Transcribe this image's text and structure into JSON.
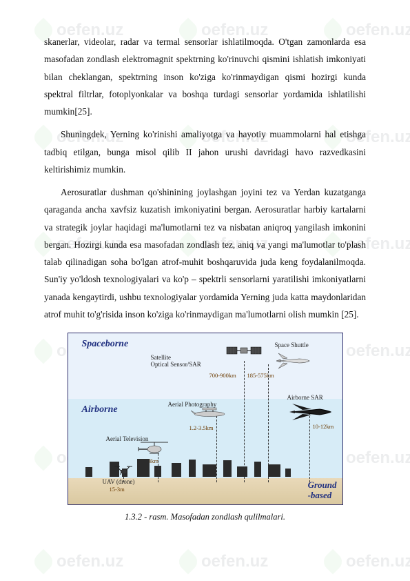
{
  "watermark_text": "oefen.uz",
  "paragraphs": {
    "p1": "skanerlar,  videolar, radar  va  termal  sensorlar  ishlatilmoqda.  O'tgan zamonlarda  esa  masofadan  zondlash elektromagnit  spektrning  ko'rinuvchi qismini  ishlatish  imkoniyati  bilan  cheklangan, spektrning  inson  ko'ziga ko'rinmaydigan  qismi  hozirgi  kunda  spektral  filtrlar, fotoplyonkalar  va  boshqa turdagi  sensorlar  yordamida  ishlatilishi  mumkin[25].",
    "p2": "Shuningdek,  Yerning  ko'rinishi  amaliyotga  va  hayotiy  muammolarni  hal etishga  tadbiq  etilgan,  bunga misol  qilib  II  jahon  urushi  davridagi  havo razvedkasini  keltirishimiz  mumkin.",
    "p3": "Aerosuratlar  dushman  qo'shinining  joylashgan  joyini  tez  va  Yerdan kuzatganga qaraganda ancha xavfsiz kuzatish imkoniyatini bergan.   Aerosuratlar harbiy  kartalarni va  strategik joylar  haqidagi  ma'lumotlarni  tez  va  nisbatan aniqroq  yangilash  imkonini  bergan. Hozirgi  kunda  esa  masofadan  zondlash tez,  aniq  va  yangi  ma'lumotlar  to'plash  talab qilinadigan soha bo'lgan  atrof-muhit boshqaruvida juda keng foydalanilmoqda. Sun'iy yo'ldosh  texnologiyalari  va  ko'p – spektrli sensorlarni yaratilishi imkoniyatlarni yanada kengaytirdi, ushbu texnologiyalar   yordamida  Yerning  juda  katta  maydonlaridan  atrof  muhit to'g'risida inson ko'ziga ko'rinmaydigan ma'lumotlarni olish mumkin [25]."
  },
  "figure": {
    "bands": {
      "spaceborne": "Spaceborne",
      "airborne": "Airborne",
      "ground": "Ground\n-based"
    },
    "items": {
      "satellite": "Satellite\nOptical Sensor/SAR",
      "shuttle": "Space Shuttle",
      "aerial_photo": "Aerial Photography",
      "airborne_sar": "Airborne SAR",
      "aerial_tv": "Aerial Television",
      "uav": "UAV (drone)"
    },
    "altitudes": {
      "sat": "700-900km",
      "shuttle": "185-575km",
      "aerial_photo": "1.2-3.5km",
      "airborne_sar": "10-12km",
      "aerial_tv": "0.3km",
      "uav": "15-3m"
    },
    "caption": "1.3.2 - rasm. Masofadan zondlash qulilmalari.",
    "colors": {
      "space_bg": "#eaf2fb",
      "air_bg": "#d7ecf7",
      "ground_bg": "#e9d9b9",
      "label_color": "#203080",
      "border": "#2a2a6a"
    }
  }
}
